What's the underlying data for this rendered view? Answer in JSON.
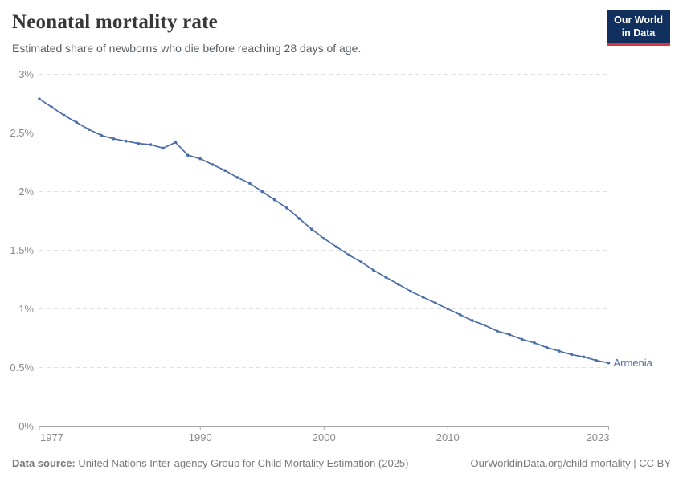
{
  "header": {
    "title": "Neonatal mortality rate",
    "subtitle": "Estimated share of newborns who die before reaching 28 days of age.",
    "logo": {
      "line1": "Our World",
      "line2": "in Data"
    }
  },
  "chart_data": {
    "type": "line",
    "title": "Neonatal mortality rate",
    "xlabel": "",
    "ylabel": "",
    "xlim": [
      1977,
      2023
    ],
    "ylim": [
      0,
      3
    ],
    "xticks": [
      1977,
      1990,
      2000,
      2010,
      2023
    ],
    "xtick_labels": [
      "1977",
      "1990",
      "2000",
      "2010",
      "2023"
    ],
    "yticks": [
      0,
      0.5,
      1,
      1.5,
      2,
      2.5,
      3
    ],
    "ytick_labels": [
      "0%",
      "0.5%",
      "1%",
      "1.5%",
      "2%",
      "2.5%",
      "3%"
    ],
    "grid": "horizontal-dashed",
    "legend_position": "end-of-line-label",
    "series": [
      {
        "name": "Armenia",
        "color": "#4b6ea8",
        "x": [
          1977,
          1978,
          1979,
          1980,
          1981,
          1982,
          1983,
          1984,
          1985,
          1986,
          1987,
          1988,
          1989,
          1990,
          1991,
          1992,
          1993,
          1994,
          1995,
          1996,
          1997,
          1998,
          1999,
          2000,
          2001,
          2002,
          2003,
          2004,
          2005,
          2006,
          2007,
          2008,
          2009,
          2010,
          2011,
          2012,
          2013,
          2014,
          2015,
          2016,
          2017,
          2018,
          2019,
          2020,
          2021,
          2022,
          2023
        ],
        "values": [
          2.79,
          2.72,
          2.65,
          2.59,
          2.53,
          2.48,
          2.45,
          2.43,
          2.41,
          2.4,
          2.37,
          2.42,
          2.31,
          2.28,
          2.23,
          2.18,
          2.12,
          2.07,
          2.0,
          1.93,
          1.86,
          1.77,
          1.68,
          1.6,
          1.53,
          1.46,
          1.4,
          1.33,
          1.27,
          1.21,
          1.15,
          1.1,
          1.05,
          1.0,
          0.95,
          0.9,
          0.86,
          0.81,
          0.78,
          0.74,
          0.71,
          0.67,
          0.64,
          0.61,
          0.59,
          0.56,
          0.54
        ]
      }
    ]
  },
  "colors": {
    "series": "#4b6ea8",
    "grid": "#e2e2e2",
    "axis": "#a8a8a8",
    "tick_label": "#8a8a8a",
    "title": "#383838",
    "subtitle": "#555d63",
    "footer": "#787878",
    "logo_bg": "#12305e",
    "logo_red": "#d8353f"
  },
  "footer": {
    "data_source_label": "Data source:",
    "data_source_text": " United Nations Inter-agency Group for Child Mortality Estimation (2025)",
    "link": "OurWorldinData.org/child-mortality",
    "separator": " | ",
    "license": "CC BY"
  }
}
